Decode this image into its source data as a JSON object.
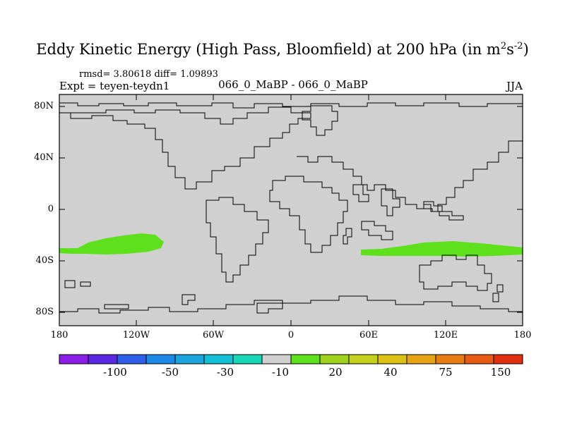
{
  "title": {
    "main": "Eddy Kinetic Energy (High Pass, Bloomfield) at 200 hPa (in m",
    "sup1": "2",
    "mid": "s",
    "sup2": "-2",
    "close": ")"
  },
  "stats": {
    "rmsd_text": "rmsd= 3.80618 diff= 1.09893",
    "expt": "Expt = teyen-teydn1",
    "case": "066_0_MaBP - 066_0_MaBP",
    "season": "JJA"
  },
  "axes": {
    "lat_labels": [
      "80N",
      "40N",
      "0",
      "40S",
      "80S"
    ],
    "lon_labels": [
      "180",
      "120W",
      "60W",
      "0",
      "60E",
      "120E",
      "180"
    ]
  },
  "colorbar": {
    "labels": [
      "-100",
      "-50",
      "-30",
      "-10",
      "20",
      "40",
      "75",
      "150"
    ],
    "colors": [
      "#8a1ee6",
      "#5a28e0",
      "#2f5ee8",
      "#1e88e6",
      "#1aa6dc",
      "#12bfd4",
      "#18d7b8",
      "#d0d0d0",
      "#5ee01c",
      "#9ed21c",
      "#c4d21e",
      "#dcc014",
      "#e6a414",
      "#e67e14",
      "#e65a14",
      "#e03010"
    ]
  },
  "field": {
    "ocean_color": "#d0d0d0",
    "anomaly_color": "#5ee01c"
  }
}
